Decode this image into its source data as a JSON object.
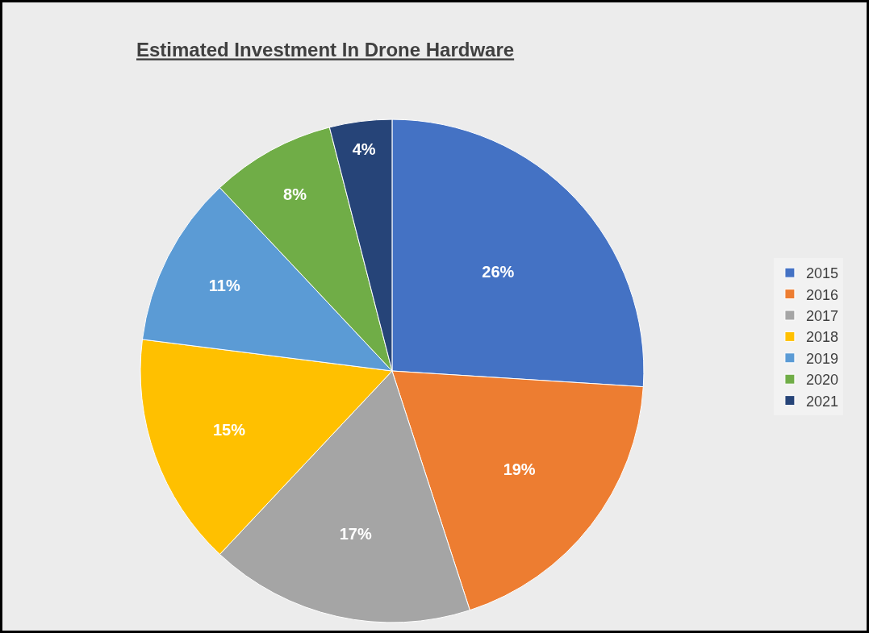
{
  "chart_data": {
    "type": "pie",
    "title": "Estimated Investment In Drone Hardware",
    "categories": [
      "2015",
      "2016",
      "2017",
      "2018",
      "2019",
      "2020",
      "2021"
    ],
    "values": [
      26,
      19,
      17,
      15,
      11,
      8,
      4
    ],
    "value_labels": [
      "26%",
      "19%",
      "17%",
      "15%",
      "11%",
      "8%",
      "4%"
    ],
    "colors": [
      "#4472c4",
      "#ed7d31",
      "#a5a5a5",
      "#ffc000",
      "#5b9bd5",
      "#70ad47",
      "#264478"
    ],
    "legend": "right"
  }
}
